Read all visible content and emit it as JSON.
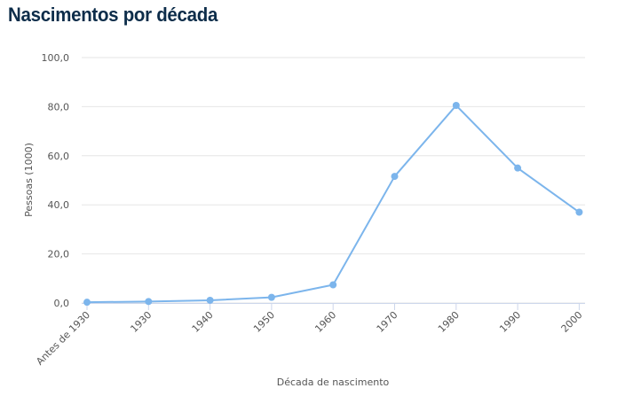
{
  "page": {
    "title": "Nascimentos por década"
  },
  "chart_data": {
    "type": "line",
    "title": "",
    "xlabel": "Década de nascimento",
    "ylabel": "Pessoas (1000)",
    "categories": [
      "Antes de 1930",
      "1930",
      "1940",
      "1950",
      "1960",
      "1970",
      "1980",
      "1990",
      "2000"
    ],
    "series": [
      {
        "values": [
          0.3,
          0.6,
          1.1,
          2.3,
          7.4,
          51.6,
          80.5,
          55.0,
          37.0
        ]
      }
    ],
    "ylim": [
      0,
      100
    ],
    "yticks": [
      "0,0",
      "20,0",
      "40,0",
      "60,0",
      "80,0",
      "100,0"
    ],
    "grid": true,
    "legend": "none",
    "colors": {
      "line": "#7cb5ec",
      "grid": "#e6e6e6",
      "text": "#555555"
    }
  }
}
